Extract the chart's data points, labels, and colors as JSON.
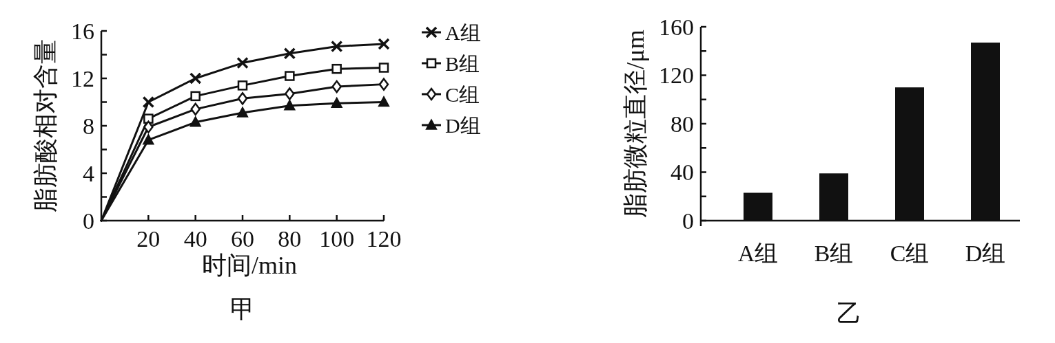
{
  "chart_data": [
    {
      "type": "line",
      "title": "甲",
      "xlabel": "时间/min",
      "ylabel": "脂肪酸相对含量",
      "x": [
        0,
        20,
        40,
        60,
        80,
        100,
        120
      ],
      "xlim": [
        0,
        120
      ],
      "xticks": [
        20,
        40,
        60,
        80,
        100,
        120
      ],
      "ylim": [
        0,
        16
      ],
      "yticks": [
        0,
        {
          "value": 2,
          "label": null
        },
        4,
        {
          "value": 6,
          "label": null
        },
        8,
        {
          "value": 10,
          "label": null
        },
        12,
        {
          "value": 14,
          "label": null
        },
        16
      ],
      "legend": "right",
      "series": [
        {
          "name": "A组",
          "color": "#111111",
          "marker": "cross",
          "values": [
            0,
            10,
            12,
            13.3,
            14.1,
            14.7,
            14.9
          ]
        },
        {
          "name": "B组",
          "color": "#111111",
          "marker": "square",
          "values": [
            0,
            8.6,
            10.5,
            11.4,
            12.2,
            12.8,
            12.9
          ]
        },
        {
          "name": "C组",
          "color": "#111111",
          "marker": "diamond",
          "values": [
            0,
            7.9,
            9.4,
            10.3,
            10.7,
            11.3,
            11.5
          ]
        },
        {
          "name": "D组",
          "color": "#111111",
          "marker": "triangle",
          "values": [
            0,
            6.8,
            8.3,
            9.1,
            9.7,
            9.9,
            10
          ]
        }
      ]
    },
    {
      "type": "bar",
      "title": "乙",
      "ylabel": "脂肪微粒直径/μm",
      "categories": [
        "A组",
        "B组",
        "C组",
        "D组"
      ],
      "values": [
        23,
        39,
        110,
        147
      ],
      "color": "#111111",
      "ylim": [
        0,
        160
      ],
      "yticks": [
        0,
        {
          "value": 20,
          "label": null
        },
        40,
        {
          "value": 60,
          "label": null
        },
        80,
        {
          "value": 100,
          "label": null
        },
        120,
        {
          "value": 140,
          "label": null
        },
        160
      ]
    }
  ]
}
